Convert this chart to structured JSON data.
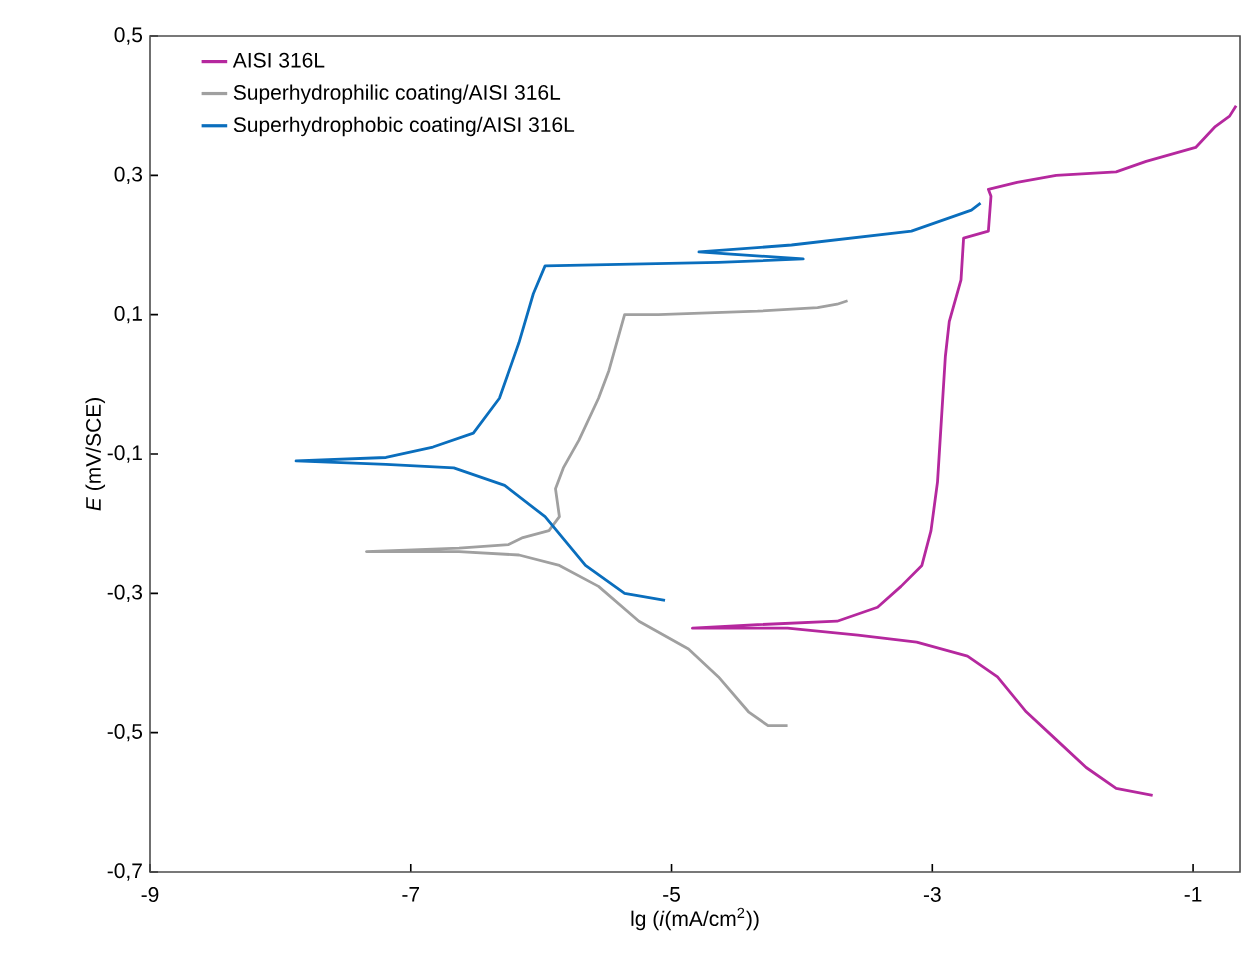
{
  "chart_data": {
    "type": "line",
    "xlabel": "lg (*i*(mA/cm$^{2}$))",
    "ylabel": "*E* (mV/SCE)",
    "xlim": [
      -9,
      -0.64
    ],
    "ylim": [
      -0.7,
      0.5
    ],
    "xticks": [
      -9,
      -7,
      -5,
      -3,
      -1
    ],
    "yticks": [
      {
        "value": 0.5,
        "label": "0,5"
      },
      {
        "value": 0.3,
        "label": "0,3"
      },
      {
        "value": 0.1,
        "label": "0,1"
      },
      {
        "value": -0.1,
        "label": "-0,1"
      },
      {
        "value": -0.3,
        "label": "-0,3"
      },
      {
        "value": -0.5,
        "label": "-0,5"
      },
      {
        "value": -0.7,
        "label": "-0,7"
      }
    ],
    "grid": false,
    "legend": "top left",
    "marker": "none",
    "line_style": "solid",
    "series": [
      {
        "name": "AISI 316L",
        "color": "#b5289e",
        "x": [
          -1.31,
          -1.59,
          -1.82,
          -2.05,
          -2.28,
          -2.5,
          -2.73,
          -3.12,
          -3.57,
          -4.11,
          -4.84,
          -4.34,
          -3.73,
          -3.42,
          -3.24,
          -3.08,
          -3.01,
          -2.96,
          -2.93,
          -2.9,
          -2.87,
          -2.78,
          -2.76,
          -2.57,
          -2.55,
          -2.57,
          -2.35,
          -2.05,
          -1.59,
          -1.36,
          -0.98,
          -0.83,
          -0.72,
          -0.67
        ],
        "values": [
          -0.59,
          -0.58,
          -0.55,
          -0.51,
          -0.47,
          -0.42,
          -0.39,
          -0.37,
          -0.36,
          -0.35,
          -0.35,
          -0.345,
          -0.34,
          -0.32,
          -0.29,
          -0.26,
          -0.21,
          -0.14,
          -0.05,
          0.04,
          0.09,
          0.15,
          0.21,
          0.22,
          0.27,
          0.28,
          0.29,
          0.3,
          0.305,
          0.32,
          0.34,
          0.37,
          0.385,
          0.4
        ]
      },
      {
        "name": "Superhydrophilic coating/AISI 316L",
        "color": "#a0a0a0",
        "x": [
          -4.11,
          -4.26,
          -4.41,
          -4.64,
          -4.87,
          -5.25,
          -5.56,
          -5.86,
          -6.17,
          -6.63,
          -7.34,
          -6.63,
          -6.25,
          -6.14,
          -5.94,
          -5.86,
          -5.89,
          -5.83,
          -5.71,
          -5.56,
          -5.48,
          -5.36,
          -5.1,
          -4.34,
          -3.88,
          -3.73,
          -3.65
        ],
        "values": [
          -0.49,
          -0.49,
          -0.47,
          -0.42,
          -0.38,
          -0.34,
          -0.29,
          -0.26,
          -0.245,
          -0.24,
          -0.24,
          -0.235,
          -0.23,
          -0.22,
          -0.21,
          -0.19,
          -0.15,
          -0.12,
          -0.08,
          -0.02,
          0.02,
          0.1,
          0.1,
          0.105,
          0.11,
          0.115,
          0.12
        ]
      },
      {
        "name": "Superhydrophobic coating/AISI 316L",
        "color": "#0a6ebd",
        "x": [
          -5.05,
          -5.36,
          -5.66,
          -5.97,
          -6.28,
          -6.67,
          -7.19,
          -7.88,
          -7.19,
          -6.83,
          -6.52,
          -6.32,
          -6.17,
          -6.06,
          -5.97,
          -4.64,
          -3.99,
          -4.79,
          -4.08,
          -3.16,
          -2.7,
          -2.63
        ],
        "values": [
          -0.31,
          -0.3,
          -0.26,
          -0.19,
          -0.145,
          -0.12,
          -0.115,
          -0.11,
          -0.105,
          -0.09,
          -0.07,
          -0.02,
          0.06,
          0.13,
          0.17,
          0.175,
          0.18,
          0.19,
          0.2,
          0.22,
          0.25,
          0.26
        ]
      }
    ]
  }
}
